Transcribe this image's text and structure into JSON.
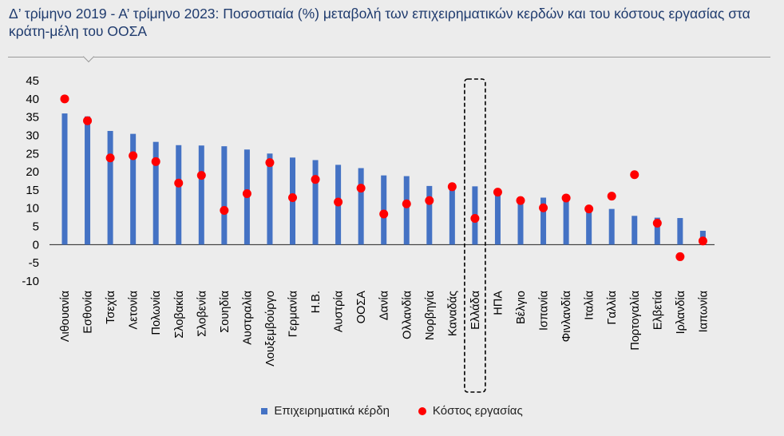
{
  "title": "Δ’ τρίμηνο 2019 - Α’ τρίμηνο 2023: Ποσοστιαία (%) μεταβολή των επιχειρηματικών κερδών και του κόστους εργασίας στα κράτη-μέλη του ΟΟΣΑ",
  "colors": {
    "bars": "#4472c4",
    "points": "#ff0000",
    "highlight_box": "#000000"
  },
  "chart_data": {
    "type": "bar",
    "categories": [
      "Λιθουανία",
      "Εσθονία",
      "Τσεχία",
      "Λετονία",
      "Πολωνία",
      "Σλοβακία",
      "Σλοβενία",
      "Σουηδία",
      "Αυστραλία",
      "Λουξεμβούργο",
      "Γερμανία",
      "Η.Β.",
      "Αυστρία",
      "ΟΟΣΑ",
      "Δανία",
      "Ολλανδία",
      "Νορβηγία",
      "Καναδάς",
      "Ελλάδα",
      "ΗΠΑ",
      "Βέλγιο",
      "Ισπανία",
      "Φινλανδία",
      "Ιταλία",
      "Γαλλία",
      "Πορτογαλία",
      "Ελβετία",
      "Ιρλανδία",
      "Ιαπωνία"
    ],
    "series": [
      {
        "name": "Επιχειρηματικά κέρδη",
        "type": "bar",
        "values": [
          36,
          35.2,
          31.2,
          30.4,
          28.2,
          27.3,
          27.2,
          27,
          26.1,
          25,
          23.9,
          23.2,
          21.9,
          21,
          19,
          18.8,
          16.1,
          15.9,
          16,
          14.6,
          12.3,
          12.9,
          12.6,
          9.8,
          9.8,
          7.9,
          7.4,
          7.3,
          3.8
        ]
      },
      {
        "name": "Κόστος εργασίας",
        "type": "scatter",
        "values": [
          40,
          34,
          23.8,
          24.4,
          22.8,
          16.9,
          19,
          9.4,
          14,
          22.5,
          12.9,
          17.9,
          11.7,
          15.5,
          8.4,
          11.2,
          12.1,
          15.9,
          7.2,
          14.4,
          12.1,
          10.1,
          12.8,
          9.8,
          13.3,
          19.2,
          5.9,
          -3.3,
          1
        ]
      }
    ],
    "highlight_category": "Ελλάδα",
    "yticks": [
      45,
      40,
      35,
      30,
      25,
      20,
      15,
      10,
      5,
      0,
      -5,
      -10
    ],
    "ylim": [
      -10,
      45
    ],
    "legend": "bottom-center"
  }
}
